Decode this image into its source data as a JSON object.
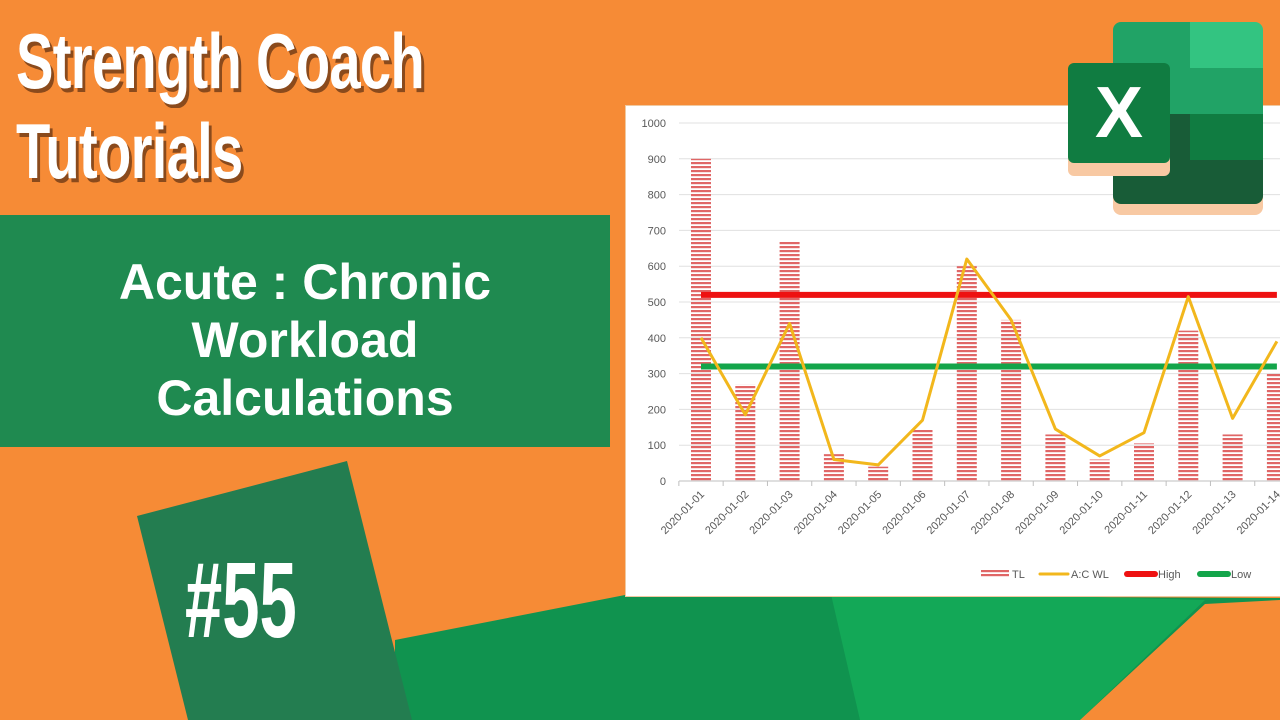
{
  "header": {
    "line1": "Strength Coach",
    "line2": "Tutorials"
  },
  "subtitle": {
    "line1": "Acute : Chronic",
    "line2": "Workload",
    "line3": "Calculations"
  },
  "episode": "#55",
  "logo": {
    "name": "excel-logo",
    "letter": "X"
  },
  "colors": {
    "orange": "#F68B36",
    "green": "#1F8A50",
    "tl": "#E06666",
    "acwl": "#F2B71C",
    "high": "#EE1111",
    "low": "#13A54A"
  },
  "chart_data": {
    "type": "bar",
    "categories": [
      "2020-01-01",
      "2020-01-02",
      "2020-01-03",
      "2020-01-04",
      "2020-01-05",
      "2020-01-06",
      "2020-01-07",
      "2020-01-08",
      "2020-01-09",
      "2020-01-10",
      "2020-01-11",
      "2020-01-12",
      "2020-01-13",
      "2020-01-14"
    ],
    "yticks": [
      "0",
      "100",
      "200",
      "300",
      "400",
      "500",
      "600",
      "700",
      "800",
      "900",
      "1000"
    ],
    "ylim": [
      0,
      1000
    ],
    "grid": true,
    "legend": "bottom-right",
    "series": [
      {
        "name": "TL",
        "type": "bar",
        "values": [
          900,
          270,
          670,
          75,
          40,
          145,
          600,
          450,
          130,
          60,
          105,
          420,
          130,
          300
        ]
      },
      {
        "name": "A:C WL",
        "type": "line",
        "values": [
          400,
          185,
          440,
          60,
          45,
          170,
          620,
          450,
          145,
          70,
          135,
          515,
          175,
          390
        ]
      },
      {
        "name": "High",
        "type": "line",
        "values": [
          520,
          520,
          520,
          520,
          520,
          520,
          520,
          520,
          520,
          520,
          520,
          520,
          520,
          520
        ]
      },
      {
        "name": "Low",
        "type": "line",
        "values": [
          320,
          320,
          320,
          320,
          320,
          320,
          320,
          320,
          320,
          320,
          320,
          320,
          320,
          320
        ]
      }
    ]
  }
}
